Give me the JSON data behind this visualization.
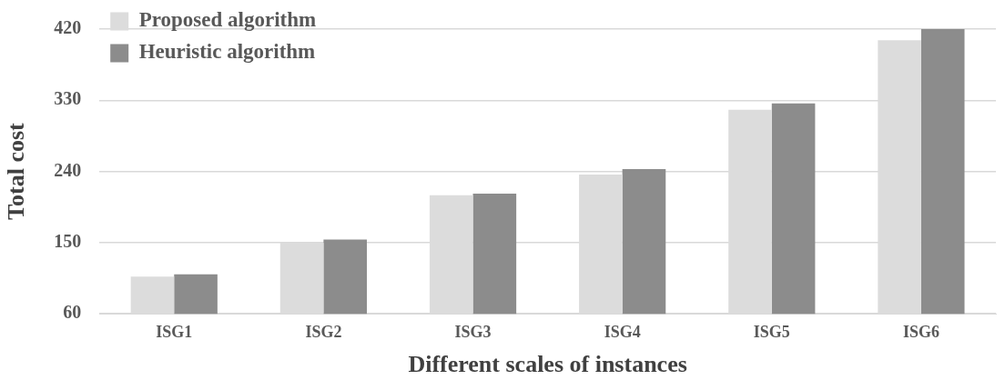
{
  "chart_data": {
    "type": "bar",
    "xlabel": "Different scales of instances",
    "ylabel": "Total cost",
    "categories": [
      "ISG1",
      "ISG2",
      "ISG3",
      "ISG4",
      "ISG5",
      "ISG6"
    ],
    "series": [
      {
        "name": "Proposed algorithm",
        "color": "#dcdcdc",
        "values": [
          107,
          150,
          210,
          236,
          318,
          406
        ]
      },
      {
        "name": "Heuristic algorithm",
        "color": "#8c8c8c",
        "values": [
          110,
          154,
          212,
          243,
          326,
          420
        ]
      }
    ],
    "ylim": [
      60,
      420
    ],
    "yticks": [
      60,
      150,
      240,
      330,
      420
    ],
    "grid": "y",
    "legend": "top left"
  }
}
